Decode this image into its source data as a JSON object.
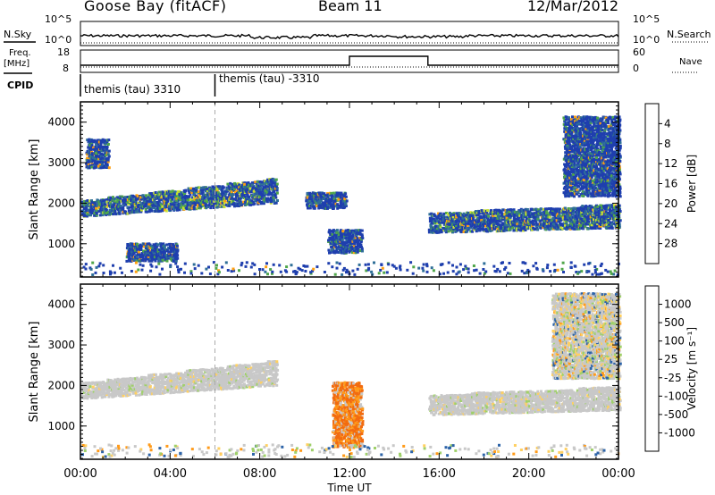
{
  "header": {
    "station": "Goose Bay (fitACF)",
    "beam": "Beam 11",
    "date": "12/Mar/2012"
  },
  "top_panels": {
    "nsky_label": "N.Sky",
    "nsearch_label": "N.Search",
    "freq_label_line1": "Freq.",
    "freq_label_line2": "[MHz]",
    "nave_label": "Nave",
    "cpid_label": "CPID",
    "nsky_ticks": [
      "10^5",
      "10^0"
    ],
    "nsearch_ticks": [
      "10^5",
      "10^0"
    ],
    "freq_ticks": [
      "18",
      "8"
    ],
    "nave_ticks": [
      "60",
      "0"
    ],
    "cpid_segments": [
      {
        "text": "themis (tau) 3310",
        "start_hour": 0,
        "end_hour": 6
      },
      {
        "text": "themis (tau) -3310",
        "start_hour": 6,
        "end_hour": 24
      }
    ]
  },
  "chart_data": [
    {
      "type": "heatmap",
      "name": "power",
      "ylabel": "Slant Range [km]",
      "yticks": [
        "1000",
        "2000",
        "3000",
        "4000"
      ],
      "ylim": [
        180,
        4500
      ],
      "xlim": [
        0,
        24
      ],
      "colorbar": {
        "label": "Power [dB]",
        "ticks": [
          "4",
          "8",
          "12",
          "16",
          "20",
          "24",
          "28"
        ],
        "range": [
          0,
          30
        ],
        "colors": [
          "#0000ff",
          "#1f3fae",
          "#2f6f98",
          "#3a8f6e",
          "#4fa64a",
          "#7fc93a",
          "#c8e030",
          "#ffd21a",
          "#ffa010",
          "#ff6a08",
          "#ff2a00",
          "#e00000"
        ]
      },
      "regions": [
        {
          "start_hour": 0.0,
          "end_hour": 8.7,
          "range_start_km": 1700,
          "range_end_km": 2100,
          "range_end_at_end_km": 2650,
          "level": "mid"
        },
        {
          "start_hour": 0.2,
          "end_hour": 1.2,
          "range_start_km": 2900,
          "range_end_km": 3600,
          "level": "low"
        },
        {
          "start_hour": 10.0,
          "end_hour": 11.8,
          "range_start_km": 1900,
          "range_end_km": 2300,
          "level": "low"
        },
        {
          "start_hour": 11.0,
          "end_hour": 12.5,
          "range_start_km": 800,
          "range_end_km": 1400,
          "level": "low"
        },
        {
          "start_hour": 15.5,
          "end_hour": 24.0,
          "range_start_km": 1300,
          "range_end_km": 1800,
          "range_end_at_end_km": 2000,
          "level": "mid"
        },
        {
          "start_hour": 21.5,
          "end_hour": 24.0,
          "range_start_km": 2200,
          "range_end_km": 4200,
          "level": "low"
        },
        {
          "start_hour": 2.0,
          "end_hour": 4.3,
          "range_start_km": 600,
          "range_end_km": 1050,
          "level": "low"
        }
      ]
    },
    {
      "type": "heatmap",
      "name": "velocity",
      "ylabel": "Slant Range [km]",
      "yticks": [
        "1000",
        "2000",
        "3000",
        "4000"
      ],
      "ylim": [
        180,
        4500
      ],
      "xlim": [
        0,
        24
      ],
      "colorbar": {
        "label": "Velocity [m s⁻¹]",
        "ticks": [
          "1000",
          "500",
          "100",
          "25",
          "-25",
          "-100",
          "-500",
          "-1000"
        ],
        "colors": [
          "#1c35c8",
          "#2c63a8",
          "#2e8a5e",
          "#48b23c",
          "#9fd06a",
          "#c8c8c8",
          "#ffd060",
          "#ff9b1a",
          "#f26b10",
          "#ff3300",
          "#ff0000"
        ]
      },
      "regions": [
        {
          "start_hour": 0.0,
          "end_hour": 8.7,
          "range_start_km": 1700,
          "range_end_km": 2100,
          "range_end_at_end_km": 2650,
          "level": "ground"
        },
        {
          "start_hour": 11.2,
          "end_hour": 12.5,
          "range_start_km": 500,
          "range_end_km": 2100,
          "level": "neg"
        },
        {
          "start_hour": 15.5,
          "end_hour": 24.0,
          "range_start_km": 1300,
          "range_end_km": 1800,
          "range_end_at_end_km": 2000,
          "level": "ground"
        },
        {
          "start_hour": 21.0,
          "end_hour": 24.0,
          "range_start_km": 2200,
          "range_end_km": 4300,
          "level": "mixed"
        }
      ]
    }
  ],
  "x_axis": {
    "ticks": [
      "00:00",
      "04:00",
      "08:00",
      "12:00",
      "16:00",
      "20:00",
      "00:00"
    ],
    "label": "Time UT"
  }
}
